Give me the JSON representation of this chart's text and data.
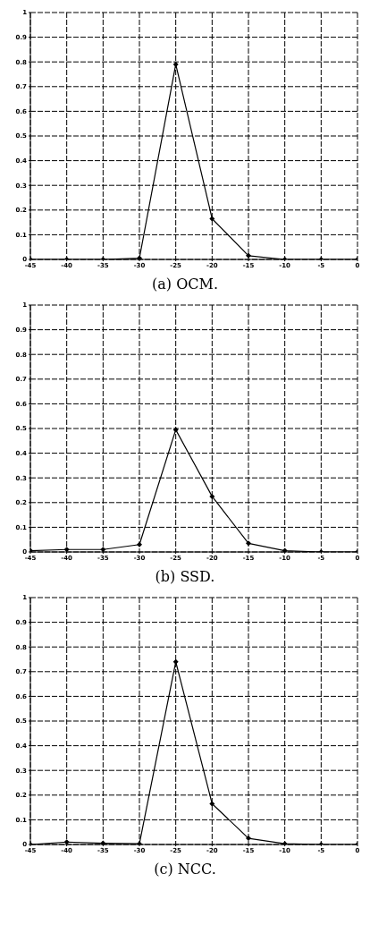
{
  "chart_data": [
    {
      "type": "line",
      "title": "(a) OCM.",
      "x": [
        -45,
        -40,
        -35,
        -30,
        -25,
        -20,
        -15,
        -10,
        -5,
        0
      ],
      "values": [
        0,
        0,
        0,
        0.005,
        0.79,
        0.165,
        0.015,
        0,
        0,
        0
      ],
      "color": "#000000",
      "marker": "diamond",
      "grid": true,
      "xlim": [
        -45,
        0
      ],
      "xticks": [
        -45,
        -40,
        -35,
        -30,
        -25,
        -20,
        -15,
        -10,
        -5,
        0
      ],
      "ylim": [
        0,
        1
      ],
      "yticks": [
        0,
        0.1,
        0.2,
        0.3,
        0.4,
        0.5,
        0.6,
        0.7,
        0.8,
        0.9,
        1
      ]
    },
    {
      "type": "line",
      "title": "(b) SSD.",
      "x": [
        -45,
        -40,
        -35,
        -30,
        -25,
        -20,
        -15,
        -10,
        -5,
        0
      ],
      "values": [
        0.005,
        0.01,
        0.01,
        0.03,
        0.495,
        0.225,
        0.035,
        0.005,
        0,
        0
      ],
      "color": "#000000",
      "marker": "diamond",
      "grid": true,
      "xlim": [
        -45,
        0
      ],
      "xticks": [
        -45,
        -40,
        -35,
        -30,
        -25,
        -20,
        -15,
        -10,
        -5,
        0
      ],
      "ylim": [
        0,
        1
      ],
      "yticks": [
        0,
        0.1,
        0.2,
        0.3,
        0.4,
        0.5,
        0.6,
        0.7,
        0.8,
        0.9,
        1
      ]
    },
    {
      "type": "line",
      "title": "(c) NCC.",
      "x": [
        -45,
        -40,
        -35,
        -30,
        -25,
        -20,
        -15,
        -10,
        -5,
        0
      ],
      "values": [
        0,
        0.01,
        0.005,
        0.003,
        0.74,
        0.165,
        0.025,
        0.003,
        0,
        0
      ],
      "color": "#000000",
      "marker": "diamond",
      "grid": true,
      "xlim": [
        -45,
        0
      ],
      "xticks": [
        -45,
        -40,
        -35,
        -30,
        -25,
        -20,
        -15,
        -10,
        -5,
        0
      ],
      "ylim": [
        0,
        1
      ],
      "yticks": [
        0,
        0.1,
        0.2,
        0.3,
        0.4,
        0.5,
        0.6,
        0.7,
        0.8,
        0.9,
        1
      ]
    }
  ]
}
